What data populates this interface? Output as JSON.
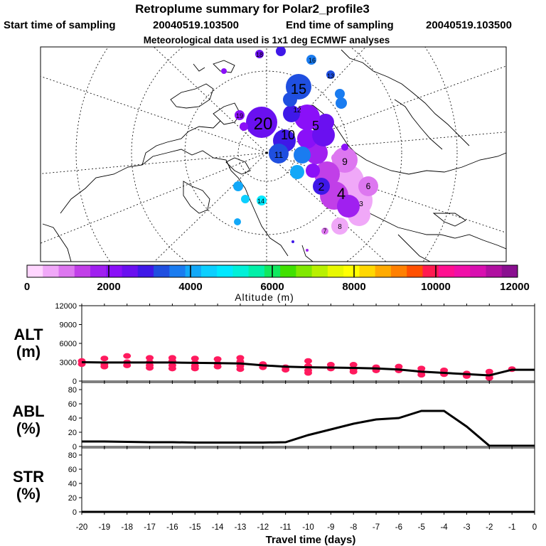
{
  "title": "Retroplume summary for Polar2_profile3",
  "subtitle": {
    "start_label": "Start time of sampling",
    "start_value": "20040519.103500",
    "end_label": "End time of sampling",
    "end_value": "20040519.103500"
  },
  "met_line": "Meteorological data used is 1x1 deg ECMWF analyses",
  "colorbar": {
    "label": "Altitude (m)",
    "ticks": [
      "0",
      "2000",
      "4000",
      "6000",
      "8000",
      "10000",
      "12000"
    ],
    "colors": [
      "#ffd6ff",
      "#f0a8f8",
      "#dd77f0",
      "#c13fe8",
      "#a020f0",
      "#8a10f8",
      "#6a10f0",
      "#3f18e8",
      "#1f4fe0",
      "#1a7cf0",
      "#12a8f8",
      "#0ccfff",
      "#00e8ff",
      "#00f0d8",
      "#00f0a8",
      "#10e860",
      "#40e000",
      "#80e800",
      "#b8f000",
      "#e8f800",
      "#ffff00",
      "#ffd700",
      "#ffaa00",
      "#ff8000",
      "#ff5000",
      "#ff1a50",
      "#ff1090",
      "#f010a8",
      "#d810b0",
      "#b010a0",
      "#8a1090"
    ]
  },
  "map_labels": [
    {
      "text": "15",
      "c": "#1f4fe0"
    },
    {
      "text": "20",
      "c": "#6a10f0"
    },
    {
      "text": "10",
      "c": "#1f4fe0"
    },
    {
      "text": "5",
      "c": "#a020f0"
    },
    {
      "text": "4",
      "c": "#a020f0"
    },
    {
      "text": "2",
      "c": "#3f18e8"
    },
    {
      "text": "9",
      "c": "#a020f0"
    },
    {
      "text": "13",
      "c": "#1a7cf0"
    },
    {
      "text": "18",
      "c": "#6a10f0"
    },
    {
      "text": "19",
      "c": "#6a10f0"
    },
    {
      "text": "16",
      "c": "#1f4fe0"
    },
    {
      "text": "14",
      "c": "#12a8f8"
    },
    {
      "text": "12",
      "c": "#6a10f0"
    },
    {
      "text": "11",
      "c": "#8a10f8"
    },
    {
      "text": "6",
      "c": "#dd77f0"
    },
    {
      "text": "7",
      "c": "#dd77f0"
    },
    {
      "text": "8",
      "c": "#c13fe8"
    },
    {
      "text": "3",
      "c": "#a020f0"
    }
  ],
  "chart_data": [
    {
      "type": "line",
      "panel": "ALT",
      "ylabel": [
        "ALT",
        "(m)"
      ],
      "ylim": [
        0,
        12000
      ],
      "yticks": [
        0,
        3000,
        6000,
        9000,
        12000
      ],
      "x": [
        -20,
        -19,
        -18,
        -17,
        -16,
        -15,
        -14,
        -13,
        -12,
        -11,
        -10,
        -9,
        -8,
        -7,
        -6,
        -5,
        -4,
        -3,
        -2,
        -1,
        0
      ],
      "mean_values": [
        3000,
        2950,
        2950,
        2950,
        2950,
        2900,
        2850,
        2800,
        2500,
        2300,
        2200,
        2150,
        2100,
        2000,
        1850,
        1500,
        1300,
        1100,
        900,
        1800,
        1800
      ],
      "spread_points": [
        [
          -20,
          3200
        ],
        [
          -20,
          2700
        ],
        [
          -19,
          3600
        ],
        [
          -19,
          2600
        ],
        [
          -19,
          2300
        ],
        [
          -18,
          4000
        ],
        [
          -18,
          3000
        ],
        [
          -18,
          2500
        ],
        [
          -17,
          3700
        ],
        [
          -17,
          3000
        ],
        [
          -17,
          2500
        ],
        [
          -17,
          2100
        ],
        [
          -16,
          3700
        ],
        [
          -16,
          3200
        ],
        [
          -16,
          2500
        ],
        [
          -16,
          2000
        ],
        [
          -15,
          3600
        ],
        [
          -15,
          2900
        ],
        [
          -15,
          2400
        ],
        [
          -15,
          2000
        ],
        [
          -14,
          3500
        ],
        [
          -14,
          2800
        ],
        [
          -14,
          2300
        ],
        [
          -13,
          3700
        ],
        [
          -13,
          3100
        ],
        [
          -13,
          2400
        ],
        [
          -13,
          1900
        ],
        [
          -12,
          2700
        ],
        [
          -12,
          2200
        ],
        [
          -11,
          2200
        ],
        [
          -11,
          1800
        ],
        [
          -10,
          3200
        ],
        [
          -10,
          2400
        ],
        [
          -10,
          1700
        ],
        [
          -10,
          1300
        ],
        [
          -9,
          2600
        ],
        [
          -9,
          2000
        ],
        [
          -8,
          2600
        ],
        [
          -8,
          1900
        ],
        [
          -8,
          1500
        ],
        [
          -7,
          2200
        ],
        [
          -7,
          1700
        ],
        [
          -6,
          2300
        ],
        [
          -6,
          1700
        ],
        [
          -5,
          2000
        ],
        [
          -5,
          1400
        ],
        [
          -5,
          1000
        ],
        [
          -4,
          1700
        ],
        [
          -4,
          1100
        ],
        [
          -3,
          1200
        ],
        [
          -3,
          800
        ],
        [
          -2,
          1500
        ],
        [
          -2,
          900
        ],
        [
          -2,
          500
        ],
        [
          -1,
          1900
        ]
      ]
    },
    {
      "type": "line",
      "panel": "ABL",
      "ylabel": [
        "ABL",
        "(%)"
      ],
      "ylim": [
        0,
        90
      ],
      "yticks": [
        0,
        20,
        40,
        60,
        80
      ],
      "x": [
        -20,
        -19,
        -18,
        -17,
        -16,
        -15,
        -14,
        -13,
        -12,
        -11,
        -10,
        -9,
        -8,
        -7,
        -6,
        -5,
        -4,
        -3,
        -2,
        -1,
        0
      ],
      "values": [
        7,
        7,
        6.5,
        6,
        6,
        5.5,
        5.5,
        5.5,
        5.5,
        6,
        16,
        24,
        32,
        38,
        40,
        50,
        50,
        28,
        1,
        1,
        1
      ]
    },
    {
      "type": "line",
      "panel": "STR",
      "ylabel": [
        "STR",
        "(%)"
      ],
      "ylim": [
        0,
        90
      ],
      "yticks": [
        0,
        20,
        40,
        60,
        80
      ],
      "x": [
        -20,
        -19,
        -18,
        -17,
        -16,
        -15,
        -14,
        -13,
        -12,
        -11,
        -10,
        -9,
        -8,
        -7,
        -6,
        -5,
        -4,
        -3,
        -2,
        -1,
        0
      ],
      "values": [
        0,
        0,
        0,
        0,
        0,
        0,
        0,
        0,
        0,
        0,
        0,
        0,
        0,
        0,
        0,
        0,
        0,
        0,
        0,
        0,
        0
      ]
    }
  ],
  "x_axis": {
    "label": "Travel time (days)",
    "ticks": [
      "-20",
      "-19",
      "-18",
      "-17",
      "-16",
      "-15",
      "-14",
      "-13",
      "-12",
      "-11",
      "-10",
      "-9",
      "-8",
      "-7",
      "-6",
      "-5",
      "-4",
      "-3",
      "-2",
      "-1",
      "0"
    ]
  }
}
